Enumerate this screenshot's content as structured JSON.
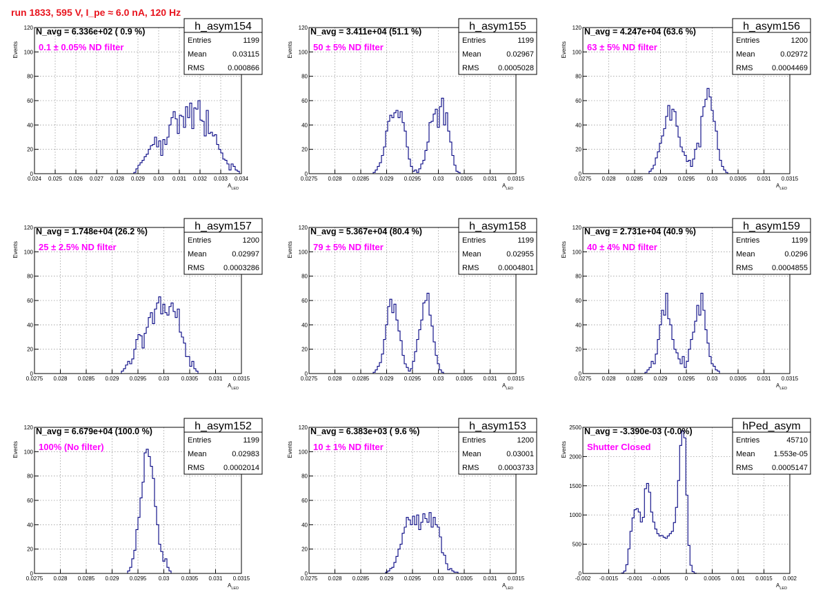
{
  "page": {
    "title": "run 1833,   595 V, I_pe ≈ 6.0 nA, 120 Hz"
  },
  "chart_data": [
    {
      "type": "bar",
      "name": "h_asym154",
      "stats": {
        "entries": "1199",
        "mean": "0.03115",
        "rms": "0.000866"
      },
      "navg": "N_avg = 6.336e+02 ( 0.9 %)",
      "note": "0.1 ± 0.05% ND filter",
      "xlabel": "A",
      "xlabel_sub": "LED",
      "ylabel": "Events",
      "xlim": [
        0.024,
        0.034
      ],
      "ylim": [
        0,
        120
      ],
      "xticks": [
        "0.024",
        "0.025",
        "0.026",
        "0.027",
        "0.028",
        "0.029",
        "0.03",
        "0.031",
        "0.032",
        "0.033",
        "0.034"
      ],
      "xtick_values": [
        0.024,
        0.025,
        0.026,
        0.027,
        0.028,
        0.029,
        0.03,
        0.031,
        0.032,
        0.033,
        0.034
      ],
      "yticks": [
        "0",
        "20",
        "40",
        "60",
        "80",
        "100",
        "120"
      ],
      "ytick_values": [
        0,
        20,
        40,
        60,
        80,
        100,
        120
      ],
      "bin_start": 0.0288,
      "bin_width": 0.0001,
      "values": [
        1,
        4,
        7,
        9,
        11,
        14,
        16,
        20,
        23,
        24,
        30,
        22,
        27,
        15,
        28,
        24,
        30,
        40,
        46,
        51,
        45,
        33,
        48,
        47,
        38,
        55,
        46,
        58,
        37,
        54,
        53,
        60,
        44,
        43,
        31,
        52,
        33,
        34,
        31,
        32,
        24,
        20,
        17,
        12,
        11,
        8,
        3,
        8,
        6,
        3,
        2
      ]
    },
    {
      "type": "bar",
      "name": "h_asym155",
      "stats": {
        "entries": "1199",
        "mean": "0.02967",
        "rms": "0.0005028"
      },
      "navg": "N_avg = 3.411e+04 (51.1 %)",
      "note": "50 ± 5% ND filter",
      "xlabel": "A",
      "xlabel_sub": "LED",
      "ylabel": "Events",
      "xlim": [
        0.0275,
        0.0315
      ],
      "ylim": [
        0,
        120
      ],
      "xticks": [
        "0.0275",
        "0.028",
        "0.0285",
        "0.029",
        "0.0295",
        "0.03",
        "0.0305",
        "0.031",
        "0.0315"
      ],
      "xtick_values": [
        0.0275,
        0.028,
        0.0285,
        0.029,
        0.0295,
        0.03,
        0.0305,
        0.031,
        0.0315
      ],
      "yticks": [
        "0",
        "20",
        "40",
        "60",
        "80",
        "100",
        "120"
      ],
      "ytick_values": [
        0,
        20,
        40,
        60,
        80,
        100,
        120
      ],
      "bin_start": 0.02874,
      "bin_width": 4e-05,
      "values": [
        1,
        3,
        6,
        9,
        15,
        22,
        35,
        43,
        48,
        46,
        50,
        52,
        46,
        51,
        42,
        35,
        22,
        12,
        6,
        2,
        3,
        1,
        4,
        8,
        11,
        19,
        26,
        42,
        43,
        49,
        53,
        38,
        55,
        62,
        40,
        50,
        35,
        26,
        15,
        7,
        2,
        1
      ]
    },
    {
      "type": "bar",
      "name": "h_asym156",
      "stats": {
        "entries": "1200",
        "mean": "0.02972",
        "rms": "0.0004469"
      },
      "navg": "N_avg = 4.247e+04 (63.6 %)",
      "note": "63 ± 5% ND filter",
      "xlabel": "A",
      "xlabel_sub": "LED",
      "ylabel": "Events",
      "xlim": [
        0.0275,
        0.0315
      ],
      "ylim": [
        0,
        120
      ],
      "xticks": [
        "0.0275",
        "0.028",
        "0.0285",
        "0.029",
        "0.0295",
        "0.03",
        "0.0305",
        "0.031",
        "0.0315"
      ],
      "xtick_values": [
        0.0275,
        0.028,
        0.0285,
        0.029,
        0.0295,
        0.03,
        0.0305,
        0.031,
        0.0315
      ],
      "yticks": [
        "0",
        "20",
        "40",
        "60",
        "80",
        "100",
        "120"
      ],
      "ytick_values": [
        0,
        20,
        40,
        60,
        80,
        100,
        120
      ],
      "bin_start": 0.02878,
      "bin_width": 4e-05,
      "values": [
        2,
        4,
        7,
        13,
        18,
        25,
        31,
        37,
        47,
        56,
        44,
        53,
        51,
        39,
        30,
        22,
        18,
        15,
        10,
        11,
        6,
        12,
        20,
        25,
        22,
        47,
        55,
        61,
        70,
        63,
        52,
        43,
        35,
        20,
        11,
        6,
        3,
        1
      ]
    },
    {
      "type": "bar",
      "name": "h_asym157",
      "stats": {
        "entries": "1200",
        "mean": "0.02997",
        "rms": "0.0003286"
      },
      "navg": "N_avg = 1.748e+04 (26.2 %)",
      "note": "25 ± 2.5% ND filter",
      "xlabel": "A",
      "xlabel_sub": "LED",
      "ylabel": "Events",
      "xlim": [
        0.0275,
        0.0315
      ],
      "ylim": [
        0,
        120
      ],
      "xticks": [
        "0.0275",
        "0.028",
        "0.0285",
        "0.029",
        "0.0295",
        "0.03",
        "0.0305",
        "0.031",
        "0.0315"
      ],
      "xtick_values": [
        0.0275,
        0.028,
        0.0285,
        0.029,
        0.0295,
        0.03,
        0.0305,
        0.031,
        0.0315
      ],
      "yticks": [
        "0",
        "20",
        "40",
        "60",
        "80",
        "100",
        "120"
      ],
      "ytick_values": [
        0,
        20,
        40,
        60,
        80,
        100,
        120
      ],
      "bin_start": 0.02918,
      "bin_width": 4e-05,
      "values": [
        2,
        4,
        7,
        10,
        8,
        12,
        20,
        28,
        32,
        31,
        21,
        33,
        38,
        46,
        50,
        41,
        53,
        58,
        63,
        49,
        57,
        50,
        48,
        55,
        58,
        51,
        46,
        53,
        34,
        30,
        25,
        14,
        14,
        6,
        10,
        4,
        2
      ]
    },
    {
      "type": "bar",
      "name": "h_asym158",
      "stats": {
        "entries": "1199",
        "mean": "0.02955",
        "rms": "0.0004801"
      },
      "navg": "N_avg = 5.367e+04 (80.4 %)",
      "note": "79 ± 5% ND filter",
      "xlabel": "A",
      "xlabel_sub": "LED",
      "ylabel": "Events",
      "xlim": [
        0.0275,
        0.0315
      ],
      "ylim": [
        0,
        120
      ],
      "xticks": [
        "0.0275",
        "0.028",
        "0.0285",
        "0.029",
        "0.0295",
        "0.03",
        "0.0305",
        "0.031",
        "0.0315"
      ],
      "xtick_values": [
        0.0275,
        0.028,
        0.0285,
        0.029,
        0.0295,
        0.03,
        0.0305,
        0.031,
        0.0315
      ],
      "yticks": [
        "0",
        "20",
        "40",
        "60",
        "80",
        "100",
        "120"
      ],
      "ytick_values": [
        0,
        20,
        40,
        60,
        80,
        100,
        120
      ],
      "bin_start": 0.02874,
      "bin_width": 4e-05,
      "values": [
        1,
        3,
        6,
        9,
        16,
        28,
        40,
        55,
        61,
        50,
        57,
        44,
        35,
        27,
        15,
        8,
        5,
        2,
        4,
        10,
        18,
        28,
        36,
        44,
        58,
        60,
        66,
        48,
        39,
        26,
        15,
        8,
        3,
        1
      ]
    },
    {
      "type": "bar",
      "name": "h_asym159",
      "stats": {
        "entries": "1199",
        "mean": "0.0296",
        "rms": "0.0004855"
      },
      "navg": "N_avg = 2.731e+04 (40.9 %)",
      "note": "40 ± 4% ND filter",
      "xlabel": "A",
      "xlabel_sub": "LED",
      "ylabel": "Events",
      "xlim": [
        0.0275,
        0.0315
      ],
      "ylim": [
        0,
        120
      ],
      "xticks": [
        "0.0275",
        "0.028",
        "0.0285",
        "0.029",
        "0.0295",
        "0.03",
        "0.0305",
        "0.031",
        "0.0315"
      ],
      "xtick_values": [
        0.0275,
        0.028,
        0.0285,
        0.029,
        0.0295,
        0.03,
        0.0305,
        0.031,
        0.0315
      ],
      "yticks": [
        "0",
        "20",
        "40",
        "60",
        "80",
        "100",
        "120"
      ],
      "ytick_values": [
        0,
        20,
        40,
        60,
        80,
        100,
        120
      ],
      "bin_start": 0.0287,
      "bin_width": 4e-05,
      "values": [
        1,
        3,
        5,
        10,
        8,
        16,
        28,
        40,
        52,
        48,
        66,
        45,
        40,
        28,
        20,
        17,
        12,
        8,
        14,
        5,
        10,
        20,
        28,
        34,
        43,
        56,
        48,
        66,
        52,
        36,
        25,
        14,
        8,
        6,
        3,
        2
      ]
    },
    {
      "type": "bar",
      "name": "h_asym152",
      "stats": {
        "entries": "1199",
        "mean": "0.02983",
        "rms": "0.0002014"
      },
      "navg": "N_avg = 6.679e+04 (100.0 %)",
      "note": "100% (No filter)",
      "xlabel": "A",
      "xlabel_sub": "LED",
      "ylabel": "Events",
      "xlim": [
        0.0275,
        0.0315
      ],
      "ylim": [
        0,
        120
      ],
      "xticks": [
        "0.0275",
        "0.028",
        "0.0285",
        "0.029",
        "0.0295",
        "0.03",
        "0.0305",
        "0.031",
        "0.0315"
      ],
      "xtick_values": [
        0.0275,
        0.028,
        0.0285,
        0.029,
        0.0295,
        0.03,
        0.0305,
        0.031,
        0.0315
      ],
      "yticks": [
        "0",
        "20",
        "40",
        "60",
        "80",
        "100",
        "120"
      ],
      "ytick_values": [
        0,
        20,
        40,
        60,
        80,
        100,
        120
      ],
      "bin_start": 0.0293,
      "bin_width": 4e-05,
      "values": [
        2,
        5,
        12,
        19,
        36,
        46,
        62,
        75,
        99,
        102,
        96,
        88,
        78,
        55,
        40,
        24,
        18,
        10,
        12,
        5,
        2
      ]
    },
    {
      "type": "bar",
      "name": "h_asym153",
      "stats": {
        "entries": "1200",
        "mean": "0.03001",
        "rms": "0.0003733"
      },
      "navg": "N_avg = 6.383e+03 ( 9.6 %)",
      "note": "10 ± 1% ND filter",
      "xlabel": "A",
      "xlabel_sub": "LED",
      "ylabel": "Events",
      "xlim": [
        0.0275,
        0.0315
      ],
      "ylim": [
        0,
        120
      ],
      "xticks": [
        "0.0275",
        "0.028",
        "0.0285",
        "0.029",
        "0.0295",
        "0.03",
        "0.0305",
        "0.031",
        "0.0315"
      ],
      "xtick_values": [
        0.0275,
        0.028,
        0.0285,
        0.029,
        0.0295,
        0.03,
        0.0305,
        0.031,
        0.0315
      ],
      "yticks": [
        "0",
        "20",
        "40",
        "60",
        "80",
        "100",
        "120"
      ],
      "ytick_values": [
        0,
        20,
        40,
        60,
        80,
        100,
        120
      ],
      "bin_start": 0.02898,
      "bin_width": 4e-05,
      "values": [
        1,
        2,
        4,
        5,
        9,
        14,
        20,
        24,
        33,
        38,
        46,
        44,
        40,
        47,
        40,
        48,
        36,
        42,
        49,
        45,
        42,
        50,
        38,
        46,
        40,
        38,
        30,
        17,
        15,
        8,
        3,
        4,
        2,
        1,
        1
      ]
    },
    {
      "type": "bar",
      "name": "hPed_asym",
      "stats": {
        "entries": "45710",
        "mean": "1.553e-05",
        "rms": "0.0005147"
      },
      "navg": "N_avg = -3.390e-03 (-0.0%)",
      "note": "Shutter Closed",
      "xlabel": "A",
      "xlabel_sub": "LED",
      "ylabel": "Events",
      "xlim": [
        -0.002,
        0.002
      ],
      "ylim": [
        0,
        2500
      ],
      "xticks": [
        "-0.002",
        "-0.0015",
        "-0.001",
        "-0.0005",
        "0",
        "0.0005",
        "0.001",
        "0.0015",
        "0.002"
      ],
      "xtick_values": [
        -0.002,
        -0.0015,
        -0.001,
        -0.0005,
        0,
        0.0005,
        0.001,
        0.0015,
        0.002
      ],
      "yticks": [
        "0",
        "500",
        "1000",
        "1500",
        "2000",
        "2500"
      ],
      "ytick_values": [
        0,
        500,
        1000,
        1500,
        2000,
        2500
      ],
      "bin_start": -0.00125,
      "bin_width": 4e-05,
      "values": [
        8,
        40,
        150,
        420,
        720,
        950,
        1090,
        1110,
        1050,
        880,
        960,
        1450,
        1540,
        1390,
        1050,
        880,
        760,
        680,
        640,
        650,
        620,
        600,
        640,
        680,
        720,
        870,
        1130,
        1590,
        2190,
        2440,
        2320,
        1340,
        480,
        140,
        30,
        5
      ]
    }
  ]
}
